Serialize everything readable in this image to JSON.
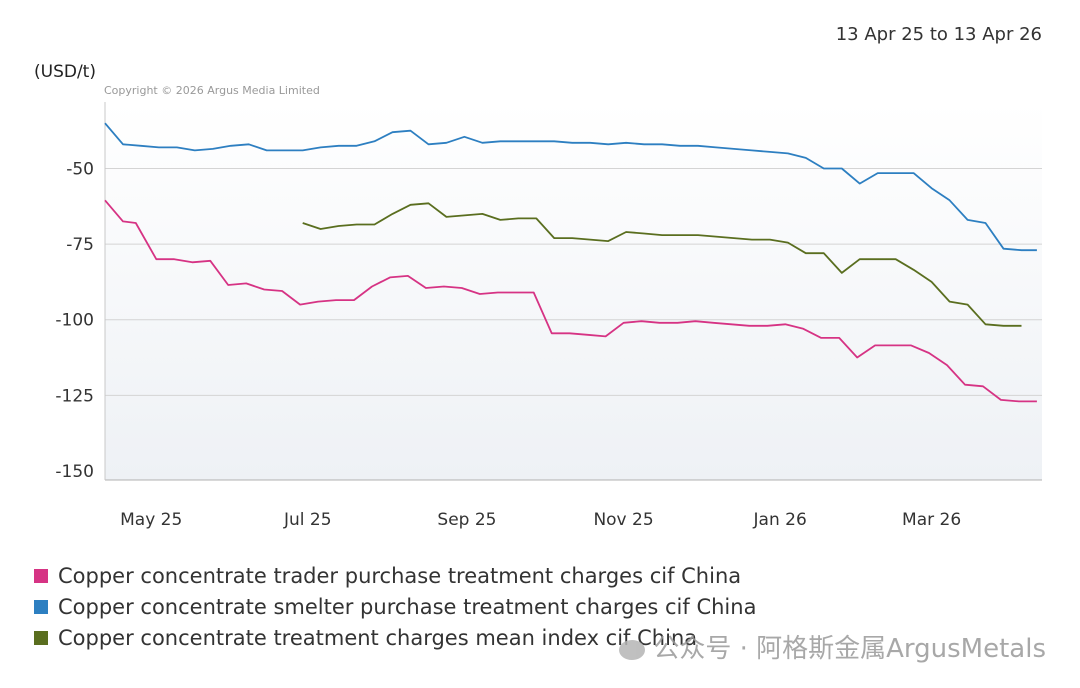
{
  "header": {
    "date_range": "13 Apr 25 to 13 Apr 26",
    "unit": "(USD/t)",
    "copyright": "Copyright © 2026 Argus Media Limited"
  },
  "chart_data": {
    "type": "line",
    "ylim": [
      -153,
      -28
    ],
    "yticks": [
      -50,
      -75,
      -100,
      -125,
      -150
    ],
    "ytick_labels": [
      "-50",
      "-75",
      "-100",
      "-125",
      "-150"
    ],
    "xlim": [
      "2025-04-13",
      "2026-04-13"
    ],
    "xticks": [
      "2025-05-01",
      "2025-07-01",
      "2025-09-01",
      "2025-11-01",
      "2026-01-01",
      "2026-03-01"
    ],
    "xtick_labels": [
      "May 25",
      "Jul 25",
      "Sep 25",
      "Nov 25",
      "Jan 26",
      "Mar 26"
    ],
    "grid": true,
    "legend_position": "bottom-left",
    "series": [
      {
        "name": "Copper concentrate trader purchase treatment charges cif China",
        "color": "#d63384",
        "points": [
          [
            "2025-04-13",
            -60.5
          ],
          [
            "2025-04-20",
            -67.5
          ],
          [
            "2025-04-25",
            -68
          ],
          [
            "2025-05-03",
            -80
          ],
          [
            "2025-05-10",
            -80
          ],
          [
            "2025-05-17",
            -81
          ],
          [
            "2025-05-24",
            -80.5
          ],
          [
            "2025-05-31",
            -88.5
          ],
          [
            "2025-06-07",
            -88
          ],
          [
            "2025-06-14",
            -90
          ],
          [
            "2025-06-21",
            -90.5
          ],
          [
            "2025-06-28",
            -95
          ],
          [
            "2025-07-05",
            -94
          ],
          [
            "2025-07-12",
            -93.5
          ],
          [
            "2025-07-19",
            -93.5
          ],
          [
            "2025-07-26",
            -89
          ],
          [
            "2025-08-02",
            -86
          ],
          [
            "2025-08-09",
            -85.5
          ],
          [
            "2025-08-16",
            -89.5
          ],
          [
            "2025-08-23",
            -89
          ],
          [
            "2025-08-30",
            -89.5
          ],
          [
            "2025-09-06",
            -91.5
          ],
          [
            "2025-09-13",
            -91
          ],
          [
            "2025-09-20",
            -91
          ],
          [
            "2025-09-27",
            -91
          ],
          [
            "2025-10-04",
            -104.5
          ],
          [
            "2025-10-11",
            -104.5
          ],
          [
            "2025-10-18",
            -105
          ],
          [
            "2025-10-25",
            -105.5
          ],
          [
            "2025-11-01",
            -101
          ],
          [
            "2025-11-08",
            -100.5
          ],
          [
            "2025-11-15",
            -101
          ],
          [
            "2025-11-22",
            -101
          ],
          [
            "2025-11-29",
            -100.5
          ],
          [
            "2025-12-06",
            -101
          ],
          [
            "2025-12-13",
            -101.5
          ],
          [
            "2025-12-20",
            -102
          ],
          [
            "2025-12-27",
            -102
          ],
          [
            "2026-01-03",
            -101.5
          ],
          [
            "2026-01-10",
            -103
          ],
          [
            "2026-01-17",
            -106
          ],
          [
            "2026-01-24",
            -106
          ],
          [
            "2026-01-31",
            -112.5
          ],
          [
            "2026-02-07",
            -108.5
          ],
          [
            "2026-02-14",
            -108.5
          ],
          [
            "2026-02-21",
            -108.5
          ],
          [
            "2026-02-28",
            -111
          ],
          [
            "2026-03-07",
            -115
          ],
          [
            "2026-03-14",
            -121.5
          ],
          [
            "2026-03-21",
            -122
          ],
          [
            "2026-03-28",
            -126.5
          ],
          [
            "2026-04-04",
            -127
          ],
          [
            "2026-04-11",
            -127
          ]
        ]
      },
      {
        "name": "Copper concentrate smelter purchase treatment charges cif China",
        "color": "#2d7fc1",
        "points": [
          [
            "2025-04-13",
            -35
          ],
          [
            "2025-04-20",
            -42
          ],
          [
            "2025-04-27",
            -42.5
          ],
          [
            "2025-05-04",
            -43
          ],
          [
            "2025-05-11",
            -43
          ],
          [
            "2025-05-18",
            -44
          ],
          [
            "2025-05-25",
            -43.5
          ],
          [
            "2025-06-01",
            -42.5
          ],
          [
            "2025-06-08",
            -42
          ],
          [
            "2025-06-15",
            -44
          ],
          [
            "2025-06-22",
            -44
          ],
          [
            "2025-06-29",
            -44
          ],
          [
            "2025-07-06",
            -43
          ],
          [
            "2025-07-13",
            -42.5
          ],
          [
            "2025-07-20",
            -42.5
          ],
          [
            "2025-07-27",
            -41
          ],
          [
            "2025-08-03",
            -38
          ],
          [
            "2025-08-10",
            -37.5
          ],
          [
            "2025-08-17",
            -42
          ],
          [
            "2025-08-24",
            -41.5
          ],
          [
            "2025-08-31",
            -39.5
          ],
          [
            "2025-09-07",
            -41.5
          ],
          [
            "2025-09-14",
            -41
          ],
          [
            "2025-09-21",
            -41
          ],
          [
            "2025-09-28",
            -41
          ],
          [
            "2025-10-05",
            -41
          ],
          [
            "2025-10-12",
            -41.5
          ],
          [
            "2025-10-19",
            -41.5
          ],
          [
            "2025-10-26",
            -42
          ],
          [
            "2025-11-02",
            -41.5
          ],
          [
            "2025-11-09",
            -42
          ],
          [
            "2025-11-16",
            -42
          ],
          [
            "2025-11-23",
            -42.5
          ],
          [
            "2025-11-30",
            -42.5
          ],
          [
            "2025-12-07",
            -43
          ],
          [
            "2025-12-14",
            -43.5
          ],
          [
            "2025-12-21",
            -44
          ],
          [
            "2025-12-28",
            -44.5
          ],
          [
            "2026-01-04",
            -45
          ],
          [
            "2026-01-11",
            -46.5
          ],
          [
            "2026-01-18",
            -50
          ],
          [
            "2026-01-25",
            -50
          ],
          [
            "2026-02-01",
            -55
          ],
          [
            "2026-02-08",
            -51.5
          ],
          [
            "2026-02-15",
            -51.5
          ],
          [
            "2026-02-22",
            -51.5
          ],
          [
            "2026-03-01",
            -56.5
          ],
          [
            "2026-03-08",
            -60.5
          ],
          [
            "2026-03-15",
            -67
          ],
          [
            "2026-03-22",
            -68
          ],
          [
            "2026-03-29",
            -76.5
          ],
          [
            "2026-04-05",
            -77
          ],
          [
            "2026-04-11",
            -77
          ]
        ]
      },
      {
        "name": "Copper concentrate treatment charges mean index cif China",
        "color": "#5a6e1f",
        "points": [
          [
            "2025-06-29",
            -68
          ],
          [
            "2025-07-06",
            -70
          ],
          [
            "2025-07-13",
            -69
          ],
          [
            "2025-07-20",
            -68.5
          ],
          [
            "2025-07-27",
            -68.5
          ],
          [
            "2025-08-03",
            -65
          ],
          [
            "2025-08-10",
            -62
          ],
          [
            "2025-08-17",
            -61.5
          ],
          [
            "2025-08-24",
            -66
          ],
          [
            "2025-08-31",
            -65.5
          ],
          [
            "2025-09-07",
            -65
          ],
          [
            "2025-09-14",
            -67
          ],
          [
            "2025-09-21",
            -66.5
          ],
          [
            "2025-09-28",
            -66.5
          ],
          [
            "2025-10-05",
            -73
          ],
          [
            "2025-10-12",
            -73
          ],
          [
            "2025-10-19",
            -73.5
          ],
          [
            "2025-10-26",
            -74
          ],
          [
            "2025-11-02",
            -71
          ],
          [
            "2025-11-09",
            -71.5
          ],
          [
            "2025-11-16",
            -72
          ],
          [
            "2025-11-23",
            -72
          ],
          [
            "2025-11-30",
            -72
          ],
          [
            "2025-12-07",
            -72.5
          ],
          [
            "2025-12-14",
            -73
          ],
          [
            "2025-12-21",
            -73.5
          ],
          [
            "2025-12-28",
            -73.5
          ],
          [
            "2026-01-04",
            -74.5
          ],
          [
            "2026-01-11",
            -78
          ],
          [
            "2026-01-18",
            -78
          ],
          [
            "2026-01-25",
            -84.5
          ],
          [
            "2026-02-01",
            -80
          ],
          [
            "2026-02-08",
            -80
          ],
          [
            "2026-02-15",
            -80
          ],
          [
            "2026-02-22",
            -83.5
          ],
          [
            "2026-03-01",
            -87.5
          ],
          [
            "2026-03-08",
            -94
          ],
          [
            "2026-03-15",
            -95
          ],
          [
            "2026-03-22",
            -101.5
          ],
          [
            "2026-03-29",
            -102
          ],
          [
            "2026-04-05",
            -102
          ]
        ]
      }
    ]
  },
  "watermark": "公众号 · 阿格斯金属ArgusMetals"
}
